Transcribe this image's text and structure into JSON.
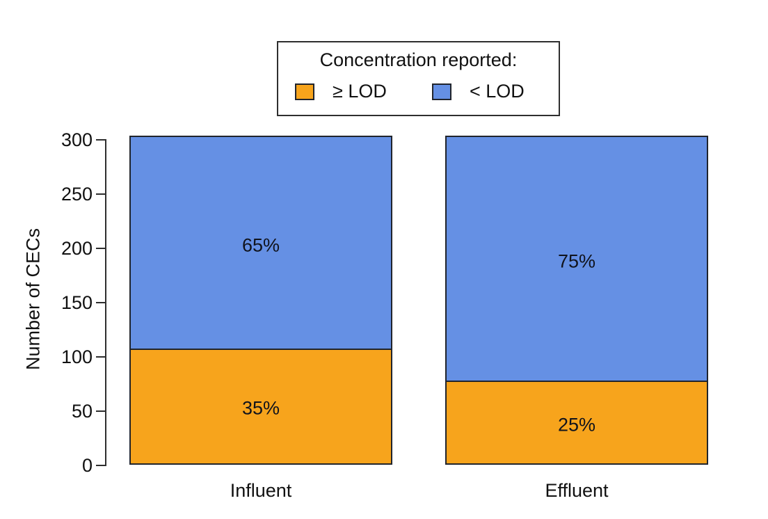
{
  "chart_data": {
    "type": "bar",
    "subtype": "stacked",
    "title": "",
    "xlabel": "",
    "ylabel": "Number of CECs",
    "ylim": [
      0,
      303
    ],
    "yticks": [
      0,
      50,
      100,
      150,
      200,
      250,
      300
    ],
    "grid": false,
    "categories": [
      "Influent",
      "Effluent"
    ],
    "bar_totals": [
      303,
      303
    ],
    "series": [
      {
        "name": "≥ LOD",
        "color": "#F7A41C",
        "values": [
          106,
          76
        ],
        "percent_labels": [
          "35%",
          "25%"
        ]
      },
      {
        "name": "< LOD",
        "color": "#6590E4",
        "values": [
          197,
          227
        ],
        "percent_labels": [
          "65%",
          "75%"
        ]
      }
    ],
    "legend": {
      "title": "Concentration reported:",
      "position": "top-center",
      "entries": [
        {
          "label": "≥ LOD",
          "color": "#F7A41C"
        },
        {
          "label": "< LOD",
          "color": "#6590E4"
        }
      ]
    },
    "colors": {
      "segment_border": "#20242c",
      "axis": "#2e2e2e",
      "text": "#111111",
      "background": "#ffffff"
    }
  }
}
